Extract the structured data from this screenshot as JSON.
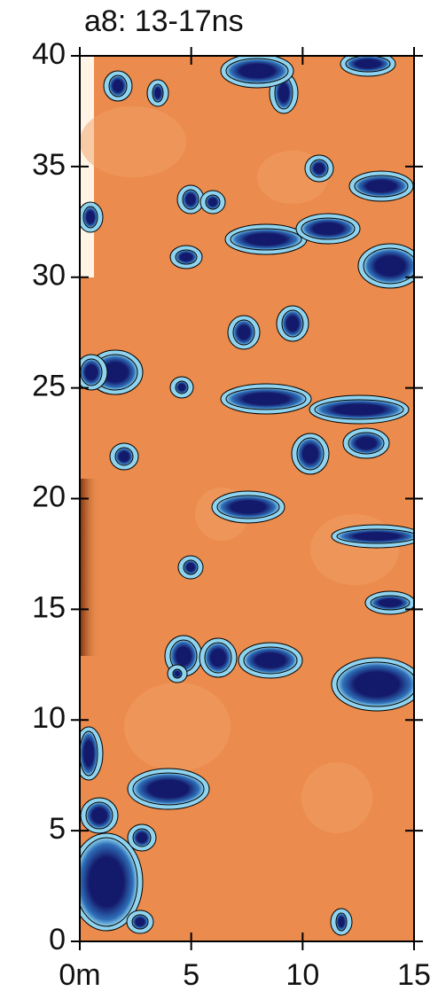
{
  "chart_data": {
    "type": "heatmap",
    "title": "a8: 13-17ns",
    "xlim": [
      0,
      15
    ],
    "xticks": [
      {
        "value": 0,
        "label": "0m"
      },
      5,
      10,
      15
    ],
    "ylim": [
      0,
      40
    ],
    "yticks": [
      0,
      5,
      10,
      15,
      20,
      25,
      30,
      35,
      40
    ],
    "background_color": "#eb8c4e",
    "anomaly_color": "#141a6b",
    "halo_color": "#8fd3ee"
  }
}
